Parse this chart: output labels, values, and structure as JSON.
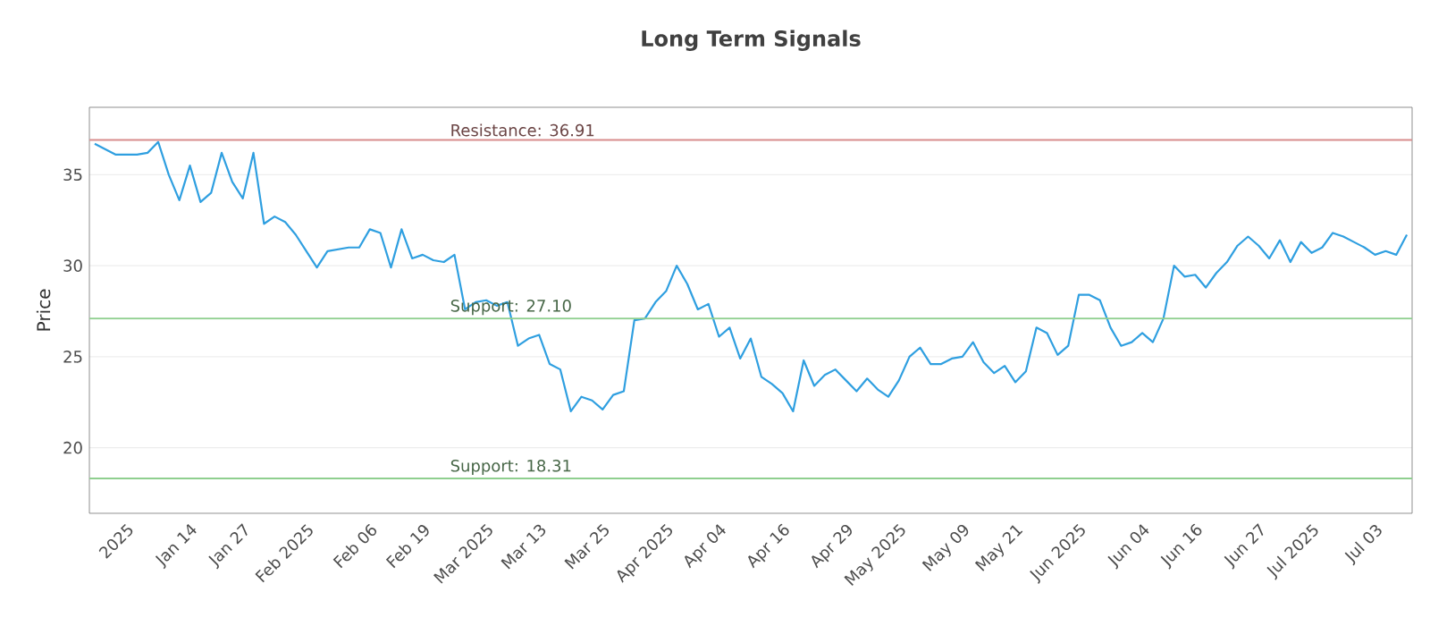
{
  "chart_data": {
    "type": "line",
    "title": "Long Term Signals",
    "ylabel": "Price",
    "categories": [
      null,
      null,
      null,
      "2025",
      null,
      null,
      null,
      null,
      null,
      "Jan 14",
      null,
      null,
      null,
      null,
      "Jan 27",
      null,
      null,
      null,
      null,
      null,
      "Feb 2025",
      null,
      null,
      null,
      null,
      null,
      "Feb 06",
      null,
      null,
      null,
      null,
      "Feb 19",
      null,
      null,
      null,
      null,
      null,
      "Mar 2025",
      null,
      null,
      null,
      null,
      "Mar 13",
      null,
      null,
      null,
      null,
      null,
      "Mar 25",
      null,
      null,
      null,
      null,
      null,
      "Apr 2025",
      null,
      null,
      null,
      null,
      "Apr 04",
      null,
      null,
      null,
      null,
      null,
      "Apr 16",
      null,
      null,
      null,
      null,
      null,
      "Apr 29",
      null,
      null,
      null,
      null,
      "May 2025",
      null,
      null,
      null,
      null,
      null,
      "May 09",
      null,
      null,
      null,
      null,
      "May 21",
      null,
      null,
      null,
      null,
      null,
      "Jun 2025",
      null,
      null,
      null,
      null,
      null,
      "Jun 04",
      null,
      null,
      null,
      null,
      "Jun 16",
      null,
      null,
      null,
      null,
      null,
      "Jun 27",
      null,
      null,
      null,
      null,
      "Jul 2025",
      null,
      null,
      null,
      null,
      null,
      "Jul 03",
      null,
      null,
      null
    ],
    "series": [
      {
        "color": "#2f9fe0",
        "values": [
          36.7,
          36.4,
          36.1,
          36.1,
          36.1,
          36.2,
          36.8,
          35.0,
          33.6,
          35.5,
          33.5,
          34.0,
          36.2,
          34.6,
          33.7,
          36.2,
          32.3,
          32.7,
          32.4,
          31.7,
          30.8,
          29.9,
          30.8,
          30.9,
          31.0,
          31.0,
          32.0,
          31.8,
          29.9,
          32.0,
          30.4,
          30.6,
          30.3,
          30.2,
          30.6,
          27.6,
          28.0,
          28.1,
          27.8,
          28.0,
          25.6,
          26.0,
          26.2,
          24.6,
          24.3,
          22.0,
          22.8,
          22.6,
          22.1,
          22.9,
          23.1,
          27.0,
          27.1,
          28.0,
          28.6,
          30.0,
          29.0,
          27.6,
          27.9,
          26.1,
          26.6,
          24.9,
          26.0,
          23.9,
          23.5,
          23.0,
          22.0,
          24.8,
          23.4,
          24.0,
          24.3,
          23.7,
          23.1,
          23.8,
          23.2,
          22.8,
          23.7,
          25.0,
          25.5,
          24.6,
          24.6,
          24.9,
          25.0,
          25.8,
          24.7,
          24.1,
          24.5,
          23.6,
          24.2,
          26.6,
          26.3,
          25.1,
          25.6,
          28.4,
          28.4,
          28.1,
          26.6,
          25.6,
          25.8,
          26.3,
          25.8,
          27.1,
          30.0,
          29.4,
          29.5,
          28.8,
          29.6,
          30.2,
          31.1,
          31.6,
          31.1,
          30.4,
          31.4,
          30.2,
          31.3,
          30.7,
          31.0,
          31.8,
          31.6,
          31.3,
          31.0,
          30.6,
          30.8,
          30.6,
          31.7
        ]
      }
    ],
    "ylim": [
      16.4,
      38.7
    ],
    "yticks": [
      20,
      25,
      30,
      35
    ],
    "grid": "y",
    "ref_lines": [
      {
        "axis": "y",
        "value": 36.91,
        "label": "Resistance: 36.91",
        "color": "#d88c8c"
      },
      {
        "axis": "y",
        "value": 27.1,
        "label": "Support: 27.10",
        "color": "#8fcf8f"
      },
      {
        "axis": "y",
        "value": 18.31,
        "label": "Support: 18.31",
        "color": "#8fcf8f"
      }
    ]
  }
}
